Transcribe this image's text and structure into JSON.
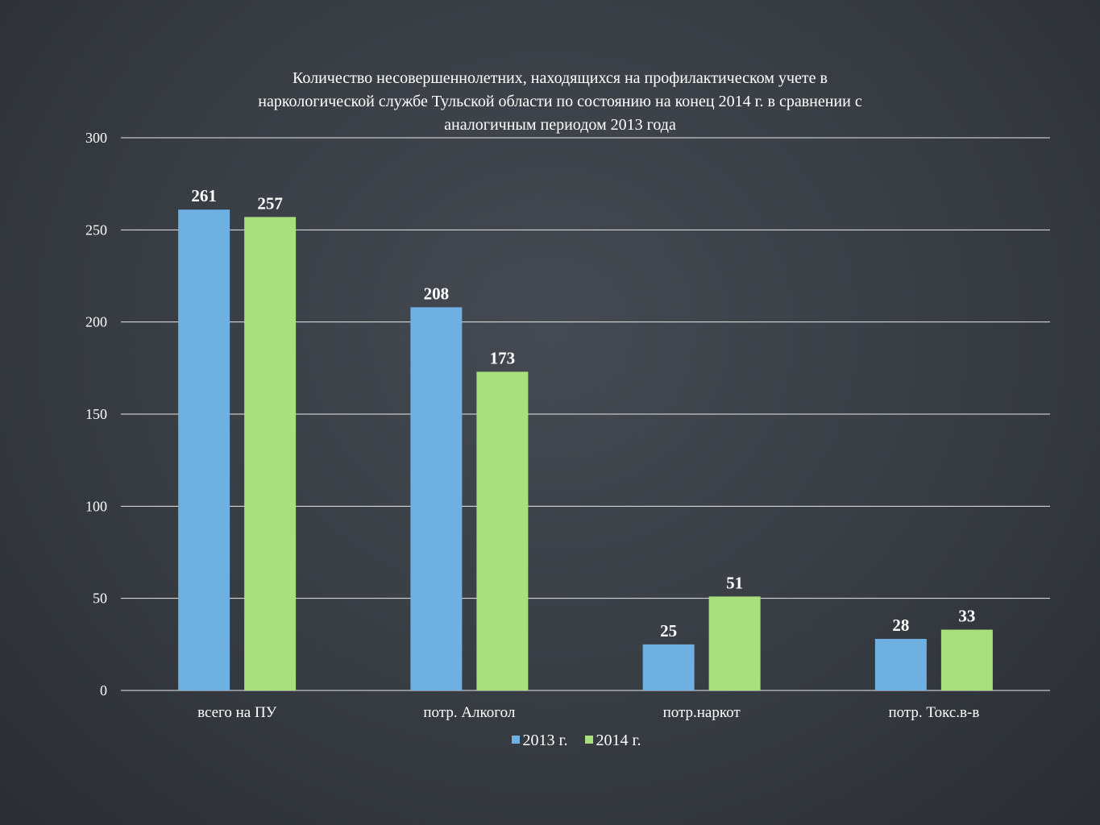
{
  "chart_data": {
    "type": "bar",
    "title_lines": [
      "Количество несовершеннолетних, находящихся на профилактическом учете  в",
      "наркологической службе Тульской области по состоянию на конец 2014 г. в сравнении с",
      "аналогичным периодом 2013 года"
    ],
    "categories": [
      "всего на ПУ",
      "потр. Алкогол",
      "потр.наркот",
      "потр. Токс.в-в"
    ],
    "series": [
      {
        "name": "2013 г.",
        "values": [
          261,
          208,
          25,
          28
        ],
        "color": "#6fb0e2"
      },
      {
        "name": "2014 г.",
        "values": [
          257,
          173,
          51,
          33
        ],
        "color": "#a8e07e"
      }
    ],
    "yticks": [
      "0",
      "50",
      "100",
      "150",
      "200",
      "250",
      "300"
    ],
    "ylim": [
      0,
      300
    ],
    "grid": true,
    "legend_position": "bottom"
  }
}
